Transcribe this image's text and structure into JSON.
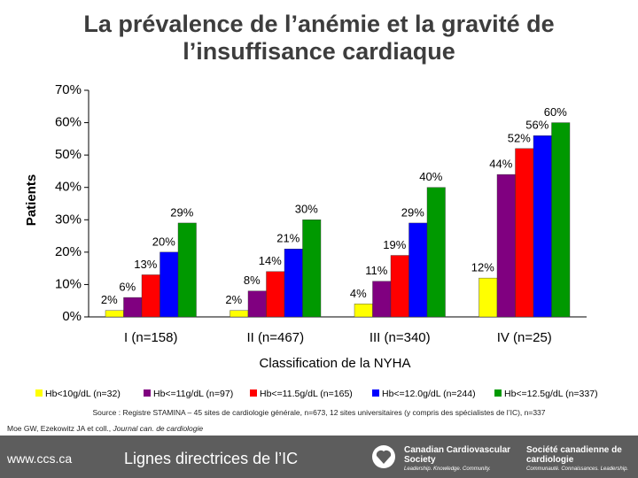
{
  "chart_data": {
    "type": "bar",
    "title": "La prévalence de l’anémie et la gravité de l’insuffisance cardiaque",
    "y_label": "Patients",
    "x_label": "Classification de la NYHA",
    "categories": [
      "I (n=158)",
      "II (n=467)",
      "III (n=340)",
      "IV (n=25)"
    ],
    "series": [
      {
        "name": "Hb<10g/dL (n=32)",
        "color": "#ffff00",
        "values": [
          2,
          2,
          4,
          12
        ],
        "value_labels": [
          "2%",
          "2%",
          "4%",
          "12%"
        ]
      },
      {
        "name": "Hb<=11g/dL (n=97)",
        "color": "#800080",
        "values": [
          6,
          8,
          11,
          44
        ],
        "value_labels": [
          "6%",
          "8%",
          "11%",
          "44%"
        ]
      },
      {
        "name": "Hb<=11.5g/dL (n=165)",
        "color": "#ff0000",
        "values": [
          13,
          14,
          19,
          52
        ],
        "value_labels": [
          "13%",
          "14%",
          "19%",
          "52%"
        ]
      },
      {
        "name": "Hb<=12.0g/dL (n=244)",
        "color": "#0000ff",
        "values": [
          20,
          21,
          29,
          56
        ],
        "value_labels": [
          "20%",
          "21%",
          "29%",
          "56%"
        ]
      },
      {
        "name": "Hb<=12.5g/dL (n=337)",
        "color": "#009900",
        "values": [
          29,
          30,
          40,
          60
        ],
        "value_labels": [
          "29%",
          "30%",
          "40%",
          "60%"
        ]
      }
    ],
    "ylim": [
      0,
      70
    ],
    "yticks": [
      {
        "value": 0,
        "label": "0%"
      },
      {
        "value": 10,
        "label": "10%"
      },
      {
        "value": 20,
        "label": "20%"
      },
      {
        "value": 30,
        "label": "30%"
      },
      {
        "value": 40,
        "label": "40%"
      },
      {
        "value": 50,
        "label": "50%"
      },
      {
        "value": 60,
        "label": "60%"
      },
      {
        "value": 70,
        "label": "70%"
      }
    ],
    "legend": "bottom",
    "grid": false
  },
  "source": "Source : Registre STAMINA – 45 sites de cardiologie générale, n=673, 12 sites universitaires (y compris des spécialistes de l’IC), n=337",
  "citation": {
    "authors": "Moe GW, Ezekowitz JA et coll.,",
    "journal": "Journal can. de cardiologie"
  },
  "footer": {
    "url": "www.ccs.ca",
    "guide": "Lignes directrices de l’IC",
    "logo_en": "Canadian Cardiovascular Society",
    "tagline_en": "Leadership. Knowledge. Community.",
    "logo_fr": "Société canadienne de cardiologie",
    "tagline_fr": "Communauté. Connaissances. Leadership."
  }
}
